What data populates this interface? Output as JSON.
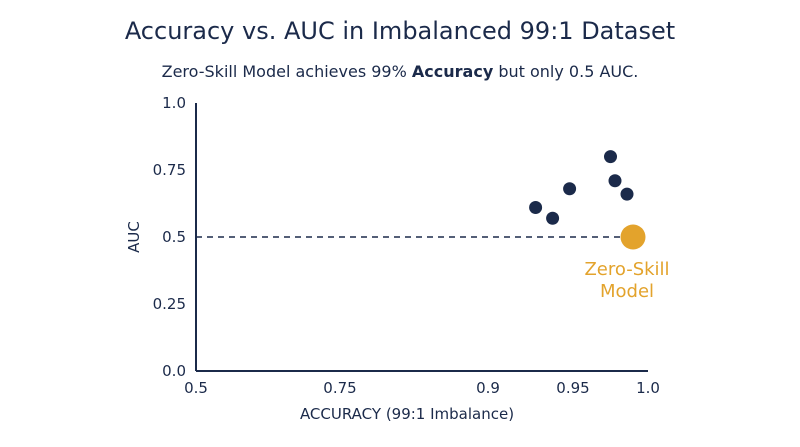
{
  "header": {
    "title": "Accuracy vs. AUC in Imbalanced 99:1 Dataset",
    "subtitle_pre": "Zero-Skill Model achieves 99% ",
    "subtitle_bold": "Accuracy",
    "subtitle_post": " but only 0.5 AUC."
  },
  "colors": {
    "primary": "#1b2a4a",
    "highlight": "#e3a32c"
  },
  "chart_data": {
    "type": "scatter",
    "xlabel": "ACCURACY (99:1 Imbalance)",
    "ylabel": "AUC",
    "xlim": [
      0.5,
      1.0
    ],
    "ylim": [
      0.0,
      1.0
    ],
    "xticks": [
      {
        "value": 0.5,
        "label": "0.5"
      },
      {
        "value": 0.75,
        "label": "0.75"
      },
      {
        "value": 0.9,
        "label": "0.9"
      },
      {
        "value": 0.95,
        "label": "0.95"
      },
      {
        "value": 1.0,
        "label": "1.0"
      }
    ],
    "yticks": [
      {
        "value": 0.0,
        "label": "0.0"
      },
      {
        "value": 0.25,
        "label": "0.25"
      },
      {
        "value": 0.5,
        "label": "0.5"
      },
      {
        "value": 0.75,
        "label": "0.75"
      },
      {
        "value": 1.0,
        "label": "1.0"
      }
    ],
    "points": [
      {
        "x": 0.928,
        "y": 0.61
      },
      {
        "x": 0.938,
        "y": 0.57
      },
      {
        "x": 0.948,
        "y": 0.68
      },
      {
        "x": 0.975,
        "y": 0.8
      },
      {
        "x": 0.978,
        "y": 0.71
      },
      {
        "x": 0.986,
        "y": 0.66
      }
    ],
    "highlight_point": {
      "x": 0.99,
      "y": 0.5,
      "label_line1": "Zero-Skill",
      "label_line2": "Model"
    },
    "reference_line": {
      "y": 0.5,
      "style": "dashed"
    },
    "grid": false
  }
}
